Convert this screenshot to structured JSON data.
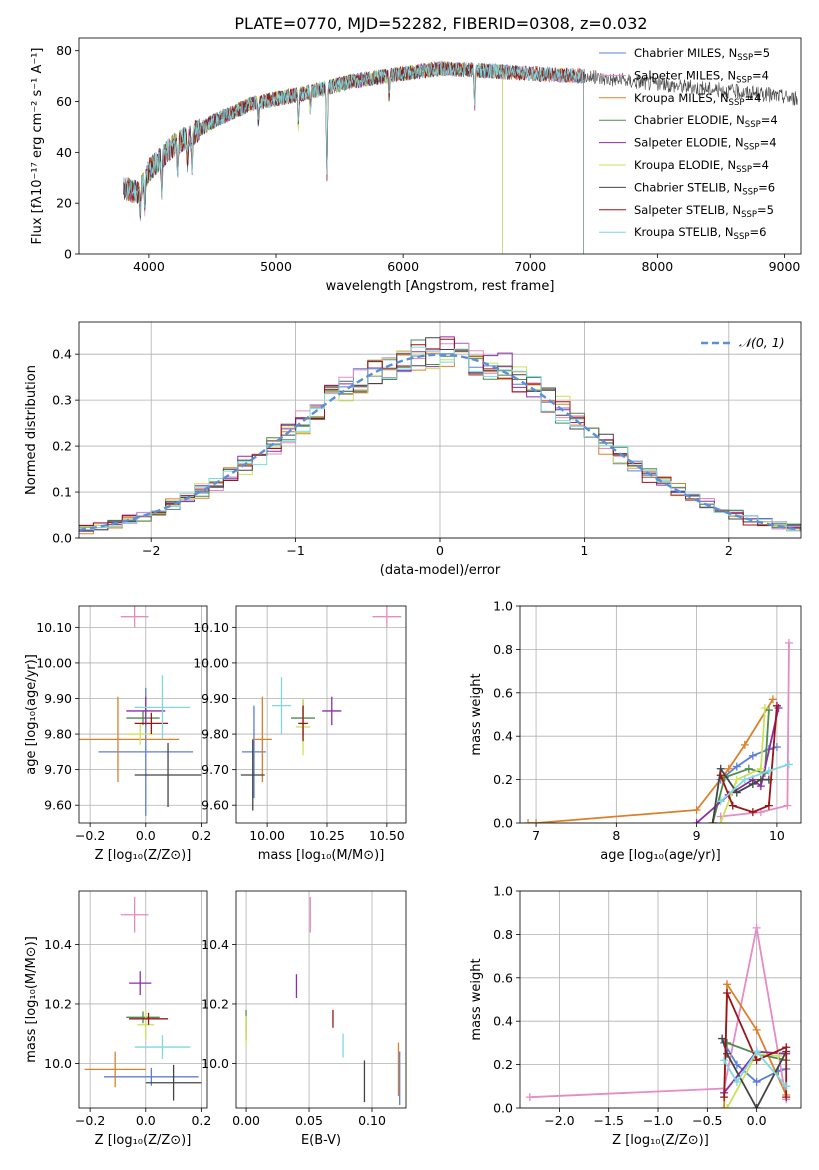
{
  "figure_title": "PLATE=0770, MJD=52282, FIBERID=0308, z=0.032",
  "colors": {
    "Chabrier MILES": "#5b7fd6",
    "Salpeter MILES": "#e58bc6",
    "Kroupa MILES": "#d9822b",
    "Chabrier ELODIE": "#4f8a4f",
    "Salpeter ELODIE": "#8b2ea8",
    "Kroupa ELODIE": "#cde05a",
    "Chabrier STELIB": "#444444",
    "Salpeter STELIB": "#9a1518",
    "Kroupa STELIB": "#7fd8e0"
  },
  "chart_data": [
    {
      "id": "spectrum",
      "type": "line",
      "xlabel": "wavelength [Angstrom, rest frame]",
      "ylabel": "Flux [fλ10⁻¹⁷ erg cm⁻² s⁻¹ A⁻¹]",
      "xlim": [
        3450,
        9130
      ],
      "ylim": [
        0,
        85
      ],
      "xticks": [
        4000,
        5000,
        6000,
        7000,
        8000,
        9000
      ],
      "yticks": [
        0,
        20,
        40,
        60,
        80
      ],
      "grid": false,
      "legend_position": "top-right",
      "continuum": [
        [
          3800,
          26
        ],
        [
          3920,
          24
        ],
        [
          4000,
          33
        ],
        [
          4200,
          43
        ],
        [
          4500,
          52
        ],
        [
          4800,
          59
        ],
        [
          5200,
          63
        ],
        [
          5600,
          68
        ],
        [
          6000,
          71
        ],
        [
          6300,
          73
        ],
        [
          6700,
          72
        ],
        [
          7000,
          71
        ],
        [
          7400,
          70
        ],
        [
          7800,
          68
        ],
        [
          8200,
          66
        ],
        [
          8600,
          64
        ],
        [
          9000,
          62
        ],
        [
          9100,
          61
        ]
      ],
      "series": [
        {
          "name": "Chabrier MILES, N_SSP=5",
          "x_end": 7420,
          "y_end": 0
        },
        {
          "name": "Salpeter MILES, N_SSP=4",
          "x_end": 7420,
          "y_end": 0
        },
        {
          "name": "Kroupa MILES, N_SSP=4",
          "x_end": 7420,
          "y_end": 0
        },
        {
          "name": "Chabrier ELODIE, N_SSP=4",
          "x_end": 6780,
          "y_end": 0
        },
        {
          "name": "Salpeter ELODIE, N_SSP=4",
          "x_end": 6780,
          "y_end": 0
        },
        {
          "name": "Kroupa ELODIE, N_SSP=4",
          "x_end": 6780,
          "y_end": 0
        },
        {
          "name": "Chabrier STELIB, N_SSP=6",
          "x_end": 9100,
          "y_end": 61
        },
        {
          "name": "Salpeter STELIB, N_SSP=5",
          "x_end": 7420,
          "y_end": 0
        },
        {
          "name": "Kroupa STELIB, N_SSP=6",
          "x_end": 7420,
          "y_end": 0
        }
      ],
      "features": [
        [
          3933,
          8
        ],
        [
          3968,
          10
        ],
        [
          4102,
          14
        ],
        [
          4227,
          12
        ],
        [
          4304,
          10
        ],
        [
          4340,
          12
        ],
        [
          4861,
          8
        ],
        [
          5175,
          12
        ],
        [
          5270,
          7
        ],
        [
          5400,
          35
        ],
        [
          5890,
          9
        ],
        [
          6563,
          14
        ]
      ]
    },
    {
      "id": "residuals",
      "type": "bar",
      "xlabel": "(data-model)/error",
      "ylabel": "Normed distribution",
      "xlim": [
        -2.5,
        2.5
      ],
      "ylim": [
        0,
        0.47
      ],
      "xticks": [
        -2,
        -1,
        0,
        1,
        2
      ],
      "yticks": [
        0.0,
        0.1,
        0.2,
        0.3,
        0.4
      ],
      "grid": true,
      "legend_position": "top-right",
      "reference_label": "𝒩(0, 1)",
      "bin_width": 0.1,
      "series": [
        {
          "jitter_seed": 1
        },
        {
          "jitter_seed": 2
        },
        {
          "jitter_seed": 3
        },
        {
          "jitter_seed": 4
        },
        {
          "jitter_seed": 5
        },
        {
          "jitter_seed": 6
        },
        {
          "jitter_seed": 7
        },
        {
          "jitter_seed": 8
        },
        {
          "jitter_seed": 9
        }
      ]
    },
    {
      "id": "age-vs-Z",
      "type": "scatter",
      "xlabel": "Z [log₁₀(Z/Z⊙)]",
      "ylabel": "age  [log₁₀(age/yr)]",
      "xlim": [
        -0.24,
        0.22
      ],
      "ylim": [
        9.55,
        10.16
      ],
      "xticks": [
        -0.2,
        0.0,
        0.2
      ],
      "yticks": [
        9.6,
        9.7,
        9.8,
        9.9,
        10.0,
        10.1
      ],
      "grid": true,
      "points": [
        {
          "x": 0.0,
          "y": 9.75,
          "xerr": 0.17,
          "yerr": 0.18
        },
        {
          "x": -0.04,
          "y": 10.13,
          "xerr": 0.05,
          "yerr": 0.03
        },
        {
          "x": -0.1,
          "y": 9.785,
          "xerr": 0.22,
          "yerr": 0.12
        },
        {
          "x": -0.01,
          "y": 9.845,
          "xerr": 0.06,
          "yerr": 0.02
        },
        {
          "x": 0.0,
          "y": 9.865,
          "xerr": 0.07,
          "yerr": 0.04
        },
        {
          "x": -0.02,
          "y": 9.8,
          "xerr": 0.05,
          "yerr": 0.03
        },
        {
          "x": 0.08,
          "y": 9.685,
          "xerr": 0.12,
          "yerr": 0.09
        },
        {
          "x": 0.02,
          "y": 9.83,
          "xerr": 0.06,
          "yerr": 0.03
        },
        {
          "x": 0.06,
          "y": 9.875,
          "xerr": 0.1,
          "yerr": 0.09
        }
      ]
    },
    {
      "id": "age-vs-mass",
      "type": "scatter",
      "xlabel": "mass [log₁₀(M/M⊙)]",
      "ylabel": "",
      "xlim": [
        9.87,
        10.58
      ],
      "ylim": [
        9.55,
        10.16
      ],
      "xticks": [
        10.0,
        10.25,
        10.5
      ],
      "yticks": [
        9.6,
        9.7,
        9.8,
        9.9,
        10.0,
        10.1
      ],
      "grid": true,
      "points": [
        {
          "x": 9.945,
          "y": 9.75,
          "xerr": 0.05,
          "yerr": 0.13
        },
        {
          "x": 10.5,
          "y": 10.13,
          "xerr": 0.06,
          "yerr": 0.03
        },
        {
          "x": 9.98,
          "y": 9.785,
          "xerr": 0.04,
          "yerr": 0.12
        },
        {
          "x": 10.15,
          "y": 9.845,
          "xerr": 0.05,
          "yerr": 0.05
        },
        {
          "x": 10.27,
          "y": 9.865,
          "xerr": 0.04,
          "yerr": 0.04
        },
        {
          "x": 10.15,
          "y": 9.82,
          "xerr": 0.03,
          "yerr": 0.08
        },
        {
          "x": 9.94,
          "y": 9.685,
          "xerr": 0.05,
          "yerr": 0.1
        },
        {
          "x": 10.15,
          "y": 9.83,
          "xerr": 0.02,
          "yerr": 0.05
        },
        {
          "x": 10.06,
          "y": 9.88,
          "xerr": 0.04,
          "yerr": 0.08
        }
      ]
    },
    {
      "id": "weight-vs-age",
      "type": "line",
      "xlabel": "age  [log₁₀(age/yr)]",
      "ylabel": "mass weight",
      "xlim": [
        6.8,
        10.3
      ],
      "ylim": [
        0,
        1.0
      ],
      "xticks": [
        7,
        8,
        9,
        10
      ],
      "yticks": [
        0.0,
        0.2,
        0.4,
        0.6,
        0.8,
        1.0
      ],
      "grid": true,
      "series": [
        {
          "x": [
            9.3,
            9.5,
            9.7,
            9.9,
            10.0
          ],
          "y": [
            0.2,
            0.26,
            0.31,
            0.34,
            0.35
          ]
        },
        {
          "x": [
            9.3,
            9.8,
            10.13,
            10.15
          ],
          "y": [
            0.03,
            0.05,
            0.08,
            0.83
          ]
        },
        {
          "x": [
            6.9,
            7.0,
            9.0,
            9.4,
            9.6,
            9.95
          ],
          "y": [
            0.0,
            0.0,
            0.06,
            0.25,
            0.36,
            0.57
          ]
        },
        {
          "x": [
            9.2,
            9.35,
            9.65,
            9.85,
            9.9
          ],
          "y": [
            0.0,
            0.21,
            0.25,
            0.23,
            0.52
          ]
        },
        {
          "x": [
            9.0,
            9.4,
            9.7,
            9.8,
            10.02
          ],
          "y": [
            0.0,
            0.13,
            0.2,
            0.17,
            0.53
          ]
        },
        {
          "x": [
            9.3,
            9.5,
            9.8,
            9.85
          ],
          "y": [
            0.0,
            0.2,
            0.25,
            0.53
          ]
        },
        {
          "x": [
            9.2,
            9.3,
            9.5,
            9.7,
            9.8,
            9.9
          ],
          "y": [
            0.0,
            0.25,
            0.14,
            0.18,
            0.2,
            0.2
          ]
        },
        {
          "x": [
            9.3,
            9.45,
            9.7,
            9.9,
            10.0
          ],
          "y": [
            0.22,
            0.08,
            0.05,
            0.08,
            0.54
          ]
        },
        {
          "x": [
            9.3,
            9.6,
            9.9,
            10.15
          ],
          "y": [
            0.1,
            0.2,
            0.24,
            0.27
          ]
        }
      ]
    },
    {
      "id": "mass-vs-Z",
      "type": "scatter",
      "xlabel": "Z [log₁₀(Z/Z⊙)]",
      "ylabel": "mass [log₁₀(M/M⊙)]",
      "xlim": [
        -0.24,
        0.22
      ],
      "ylim": [
        9.85,
        10.58
      ],
      "xticks": [
        -0.2,
        0.0,
        0.2
      ],
      "yticks": [
        10.0,
        10.2,
        10.4
      ],
      "grid": true,
      "points": [
        {
          "x": 0.02,
          "y": 9.955,
          "xerr": 0.17,
          "yerr": 0.03
        },
        {
          "x": -0.04,
          "y": 10.5,
          "xerr": 0.05,
          "yerr": 0.06
        },
        {
          "x": -0.11,
          "y": 9.98,
          "xerr": 0.11,
          "yerr": 0.06
        },
        {
          "x": -0.01,
          "y": 10.155,
          "xerr": 0.06,
          "yerr": 0.02
        },
        {
          "x": -0.02,
          "y": 10.27,
          "xerr": 0.04,
          "yerr": 0.04
        },
        {
          "x": 0.0,
          "y": 10.13,
          "xerr": 0.03,
          "yerr": 0.05
        },
        {
          "x": 0.1,
          "y": 9.935,
          "xerr": 0.1,
          "yerr": 0.06
        },
        {
          "x": 0.01,
          "y": 10.15,
          "xerr": 0.07,
          "yerr": 0.02
        },
        {
          "x": 0.06,
          "y": 10.055,
          "xerr": 0.1,
          "yerr": 0.04
        }
      ]
    },
    {
      "id": "mass-vs-ebv",
      "type": "scatter",
      "xlabel": "E(B-V)",
      "ylabel": "",
      "xlim": [
        -0.008,
        0.127
      ],
      "ylim": [
        9.85,
        10.58
      ],
      "xticks": [
        0.0,
        0.05,
        0.1
      ],
      "yticks": [
        10.0,
        10.2,
        10.4
      ],
      "grid": true,
      "points": [
        {
          "x": 0.122,
          "y": 9.95,
          "xerr": 0,
          "yerr": 0.09
        },
        {
          "x": 0.051,
          "y": 10.5,
          "xerr": 0,
          "yerr": 0.06
        },
        {
          "x": 0.121,
          "y": 9.98,
          "xerr": 0,
          "yerr": 0.09
        },
        {
          "x": 0.0,
          "y": 10.13,
          "xerr": 0,
          "yerr": 0.05
        },
        {
          "x": 0.04,
          "y": 10.26,
          "xerr": 0,
          "yerr": 0.04
        },
        {
          "x": 0.0,
          "y": 10.11,
          "xerr": 0,
          "yerr": 0.05
        },
        {
          "x": 0.094,
          "y": 9.94,
          "xerr": 0,
          "yerr": 0.07
        },
        {
          "x": 0.069,
          "y": 10.15,
          "xerr": 0,
          "yerr": 0.03
        },
        {
          "x": 0.077,
          "y": 10.06,
          "xerr": 0,
          "yerr": 0.04
        }
      ]
    },
    {
      "id": "weight-vs-Z",
      "type": "line",
      "xlabel": "Z [log₁₀(Z/Z⊙)]",
      "ylabel": "mass weight",
      "xlim": [
        -2.4,
        0.45
      ],
      "ylim": [
        0,
        1.0
      ],
      "xticks": [
        -2.0,
        -1.5,
        -1.0,
        -0.5,
        0.0
      ],
      "yticks": [
        0.0,
        0.2,
        0.4,
        0.6,
        0.8,
        1.0
      ],
      "grid": true,
      "series": [
        {
          "x": [
            -0.33,
            -0.2,
            0.0,
            0.22,
            0.3
          ],
          "y": [
            0.3,
            0.2,
            0.12,
            0.17,
            0.18
          ]
        },
        {
          "x": [
            -2.3,
            -0.33,
            0.0,
            0.3
          ],
          "y": [
            0.05,
            0.09,
            0.83,
            0.04
          ]
        },
        {
          "x": [
            -0.33,
            -0.3,
            0.0,
            0.3
          ],
          "y": [
            0.0,
            0.57,
            0.36,
            0.06
          ]
        },
        {
          "x": [
            -0.3,
            0.0,
            0.3
          ],
          "y": [
            0.3,
            0.25,
            0.22
          ]
        },
        {
          "x": [
            -0.33,
            0.0,
            0.3
          ],
          "y": [
            0.07,
            0.26,
            0.25
          ]
        },
        {
          "x": [
            -0.3,
            0.0,
            0.22
          ],
          "y": [
            0.0,
            0.25,
            0.24
          ]
        },
        {
          "x": [
            -0.35,
            -0.3,
            0.0,
            0.3
          ],
          "y": [
            0.32,
            0.25,
            0.0,
            0.26
          ]
        },
        {
          "x": [
            -0.33,
            -0.3,
            0.0,
            0.3,
            0.3
          ],
          "y": [
            0.05,
            0.53,
            0.22,
            0.28,
            0.05
          ]
        },
        {
          "x": [
            -0.33,
            -0.2,
            0.0,
            0.3
          ],
          "y": [
            0.22,
            0.12,
            0.26,
            0.1
          ]
        }
      ]
    }
  ]
}
